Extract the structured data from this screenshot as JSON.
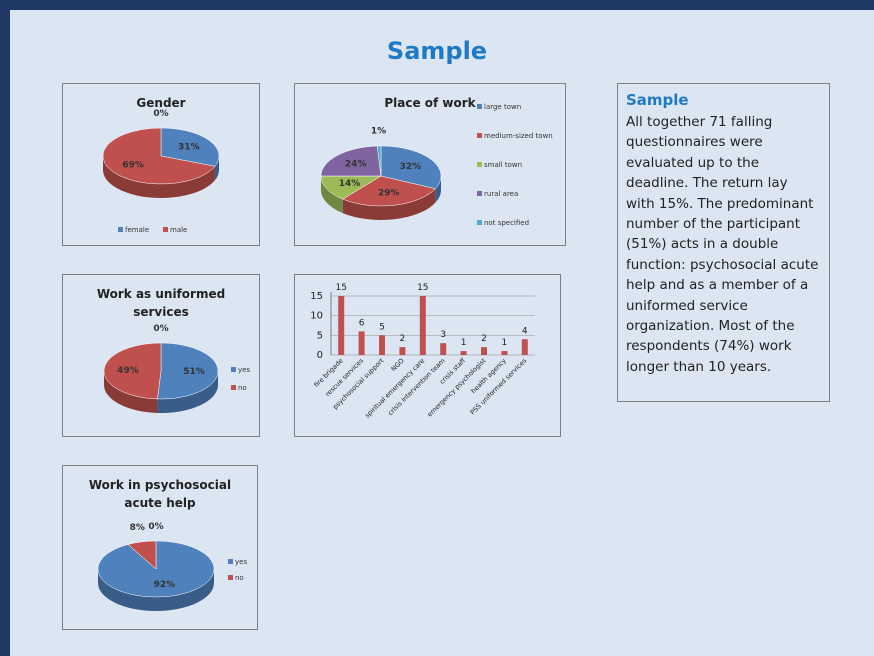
{
  "title": "Sample",
  "chart_data": [
    {
      "type": "pie",
      "title": "Gender",
      "categories": [
        "female",
        "male",
        null
      ],
      "values": [
        31,
        69,
        0
      ],
      "value_labels": [
        "31%",
        "69%",
        "0%"
      ],
      "colors": [
        "#4f81bd",
        "#c0504d"
      ],
      "legend": "bottom"
    },
    {
      "type": "pie",
      "title": "Place of work",
      "categories": [
        "large town",
        "medium-sized town",
        "small town",
        "rural area",
        "not specified"
      ],
      "values": [
        32,
        29,
        14,
        24,
        1
      ],
      "value_labels": [
        "32%",
        "29%",
        "14%",
        "24%",
        "1%"
      ],
      "colors": [
        "#4f81bd",
        "#c0504d",
        "#9bbb59",
        "#8064a2",
        "#4bacc6"
      ],
      "legend": "right"
    },
    {
      "type": "pie",
      "title": "Work as uniformed services",
      "categories": [
        "yes",
        "no",
        null
      ],
      "values": [
        51,
        49,
        0
      ],
      "value_labels": [
        "51%",
        "49%",
        "0%"
      ],
      "colors": [
        "#4f81bd",
        "#c0504d"
      ],
      "legend": "right"
    },
    {
      "type": "bar",
      "categories": [
        "fire brigade",
        "rescue services",
        "psychosocial support",
        "NGO",
        "spiritual emergency care",
        "crisis intervention team",
        "crisis staff",
        "emergency psychologist",
        "health agency",
        "PSS uniformed services"
      ],
      "values": [
        15,
        6,
        5,
        2,
        15,
        3,
        1,
        2,
        1,
        4
      ],
      "color": "#c0504d",
      "ylim": [
        0,
        16
      ],
      "yticks": [
        0,
        5,
        10,
        15
      ],
      "grid": true
    },
    {
      "type": "pie",
      "title": "Work in psychosocial acute help",
      "categories": [
        "yes",
        "no",
        null
      ],
      "values": [
        92,
        8,
        0
      ],
      "value_labels": [
        "92%",
        "8%",
        "0%"
      ],
      "colors": [
        "#4f81bd",
        "#c0504d"
      ],
      "legend": "right"
    }
  ],
  "textbox": {
    "title": "Sample",
    "lines": [
      "All together 71 falling",
      "questionnaires were",
      "evaluated up to the",
      "deadline. The return lay",
      "with 15%. The predominant",
      "number of the participant",
      "(51%) acts in a double",
      "function: psychosocial acute",
      "help and as a member of a",
      "uniformed service",
      "organization. Most of the",
      "respondents (74%) work",
      "longer than 10 years."
    ]
  }
}
